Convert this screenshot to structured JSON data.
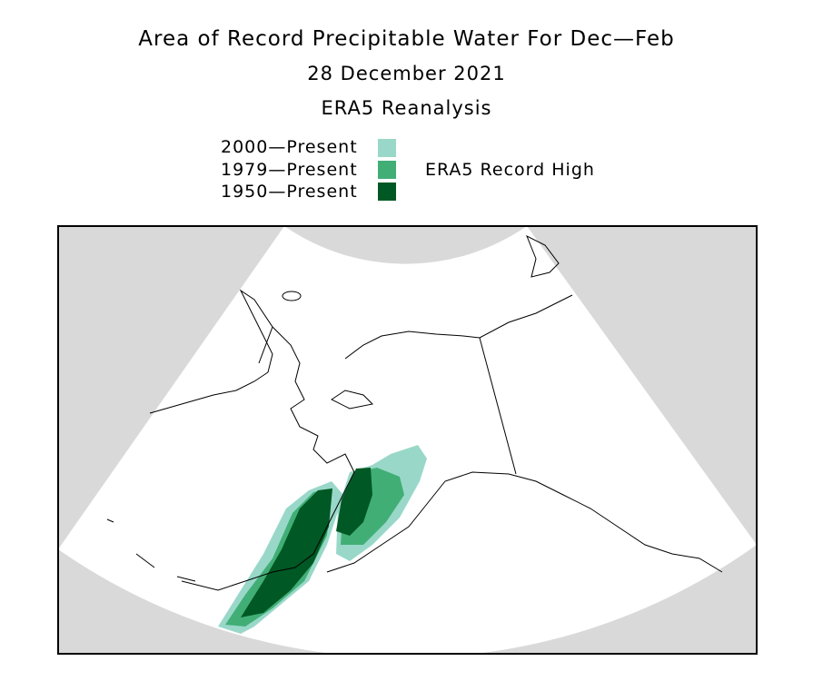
{
  "title": "Area of Record Precipitable Water For Dec—Feb",
  "date": "28 December 2021",
  "source": "ERA5 Reanalysis",
  "legend": {
    "items": [
      {
        "label": "2000—Present",
        "color": "#99d8c9"
      },
      {
        "label": "1979—Present",
        "color": "#41ae76"
      },
      {
        "label": "1950—Present",
        "color": "#005824"
      }
    ],
    "caption": "ERA5 Record High"
  },
  "colors": {
    "outside": "#d9d9d9",
    "land_line": "#000000"
  }
}
